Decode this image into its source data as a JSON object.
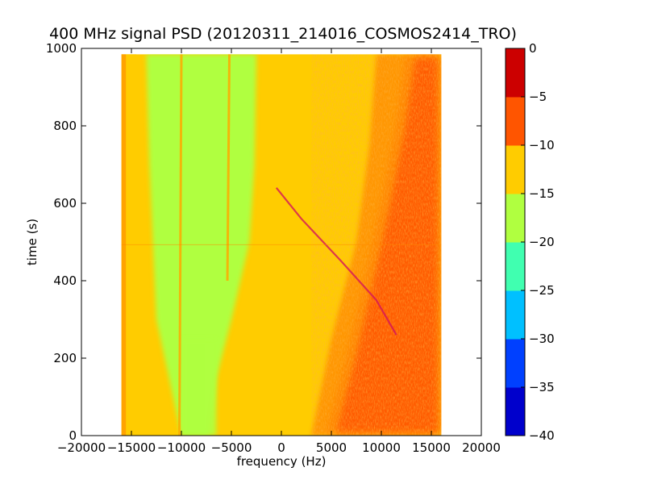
{
  "chart_data": {
    "type": "heatmap",
    "title": "400 MHz signal PSD (20120311_214016_COSMOS2414_TRO)",
    "xlabel": "frequency (Hz)",
    "ylabel": "time (s)",
    "xlim": [
      -20000,
      20000
    ],
    "ylim": [
      0,
      1000
    ],
    "x_ticks": [
      -20000,
      -15000,
      -10000,
      -5000,
      0,
      5000,
      10000,
      15000,
      20000
    ],
    "x_tick_labels": [
      "−20000",
      "−15000",
      "−10000",
      "−5000",
      "0",
      "5000",
      "10000",
      "15000",
      "20000"
    ],
    "y_ticks": [
      0,
      200,
      400,
      600,
      800,
      1000
    ],
    "y_tick_labels": [
      "0",
      "200",
      "400",
      "600",
      "800",
      "1000"
    ],
    "data_extent": {
      "x": [
        -16000,
        16000
      ],
      "y": [
        0,
        985
      ]
    },
    "colormap": "jet",
    "colorbar": {
      "levels": [
        -40,
        -35,
        -30,
        -25,
        -20,
        -15,
        -10,
        -5,
        0
      ],
      "tick_labels": [
        "−40",
        "−35",
        "−30",
        "−25",
        "−20",
        "−15",
        "−10",
        "−5",
        "0"
      ],
      "colors": [
        "#0000cc",
        "#0040ff",
        "#00c0ff",
        "#40ffb0",
        "#b0ff40",
        "#ffcc00",
        "#ff5500",
        "#cc0000"
      ]
    },
    "regions": [
      {
        "band": "left edge",
        "x_range": [
          -16000,
          -14500
        ],
        "level_range": [
          -15,
          -10
        ]
      },
      {
        "band": "green band (top)",
        "x_range": [
          -13500,
          -2500
        ],
        "level_range": [
          -20,
          -15
        ]
      },
      {
        "band": "green band (bottom)",
        "x_range": [
          -10000,
          -6500
        ],
        "level_range": [
          -20,
          -15
        ]
      },
      {
        "band": "center",
        "x_range": [
          -2500,
          8000
        ],
        "level_range": [
          -15,
          -10
        ]
      },
      {
        "band": "right",
        "x_range": [
          10000,
          16000
        ],
        "level_range": [
          -10,
          -5
        ]
      }
    ],
    "features": [
      {
        "name": "vertical line",
        "x": -10000,
        "y_range": [
          0,
          985
        ],
        "level_range": [
          -15,
          -10
        ]
      },
      {
        "name": "vertical line",
        "x": -5200,
        "y_range": [
          400,
          985
        ],
        "level_range": [
          -15,
          -10
        ]
      },
      {
        "name": "doppler signal trace",
        "x": [
          -500,
          2000,
          6000,
          9500,
          11500
        ],
        "y": [
          640,
          560,
          450,
          350,
          260
        ],
        "level_range": [
          -5,
          0
        ]
      },
      {
        "name": "horizontal line",
        "y": 493,
        "x_range": [
          -16000,
          16000
        ]
      }
    ],
    "grid": false
  }
}
